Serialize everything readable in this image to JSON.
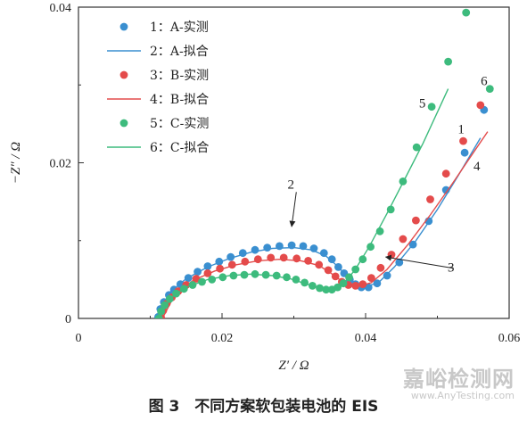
{
  "caption": "图 3　不同方案软包装电池的 EIS",
  "watermark": {
    "cn": "嘉峪检测网",
    "en": "www.AnyTesting.com"
  },
  "colors": {
    "A": "#3a8fd0",
    "B": "#e44b4b",
    "C": "#3dbb7d",
    "axis": "#333333"
  },
  "chart_data": {
    "type": "scatter",
    "title": "",
    "xlabel": "Z′ / Ω",
    "ylabel": "−Z″ / Ω",
    "xlim": [
      0,
      0.06
    ],
    "ylim": [
      0,
      0.04
    ],
    "x_ticks": [
      {
        "value": 0,
        "label": "0"
      },
      {
        "value": 0.02,
        "label": "0.02"
      },
      {
        "value": 0.04,
        "label": "0.04"
      },
      {
        "value": 0.06,
        "label": "0.06"
      }
    ],
    "y_ticks": [
      {
        "value": 0,
        "label": "0"
      },
      {
        "value": 0.02,
        "label": "0.02"
      },
      {
        "value": 0.04,
        "label": "0.04"
      }
    ],
    "grid": false,
    "legend_position": "top-left",
    "series": [
      {
        "key": "A",
        "name": "1：A-实测",
        "kind": "points",
        "points": [
          [
            0.0111,
            0.0002
          ],
          [
            0.0114,
            0.0012
          ],
          [
            0.0119,
            0.0021
          ],
          [
            0.0126,
            0.003
          ],
          [
            0.0133,
            0.0037
          ],
          [
            0.0142,
            0.0044
          ],
          [
            0.0153,
            0.0052
          ],
          [
            0.0166,
            0.006
          ],
          [
            0.018,
            0.0067
          ],
          [
            0.0196,
            0.0073
          ],
          [
            0.0212,
            0.0079
          ],
          [
            0.0229,
            0.0084
          ],
          [
            0.0246,
            0.0088
          ],
          [
            0.0263,
            0.0091
          ],
          [
            0.028,
            0.0093
          ],
          [
            0.0297,
            0.0094
          ],
          [
            0.0313,
            0.0093
          ],
          [
            0.0328,
            0.009
          ],
          [
            0.0342,
            0.0084
          ],
          [
            0.0353,
            0.0076
          ],
          [
            0.0362,
            0.0066
          ],
          [
            0.037,
            0.0058
          ],
          [
            0.0378,
            0.005
          ],
          [
            0.0386,
            0.0044
          ],
          [
            0.0394,
            0.004
          ],
          [
            0.0404,
            0.004
          ],
          [
            0.0416,
            0.0045
          ],
          [
            0.043,
            0.0055
          ],
          [
            0.0447,
            0.0072
          ],
          [
            0.0466,
            0.0095
          ],
          [
            0.0488,
            0.0125
          ],
          [
            0.0512,
            0.0165
          ],
          [
            0.0538,
            0.0213
          ],
          [
            0.0565,
            0.0268
          ]
        ]
      },
      {
        "key": "A",
        "name": "2：A-拟合",
        "kind": "line",
        "points": [
          [
            0.0112,
            0.0002
          ],
          [
            0.0128,
            0.0034
          ],
          [
            0.015,
            0.0051
          ],
          [
            0.018,
            0.0066
          ],
          [
            0.021,
            0.0077
          ],
          [
            0.024,
            0.0085
          ],
          [
            0.027,
            0.009
          ],
          [
            0.03,
            0.0091
          ],
          [
            0.0325,
            0.0088
          ],
          [
            0.0345,
            0.008
          ],
          [
            0.036,
            0.0068
          ],
          [
            0.0372,
            0.0056
          ],
          [
            0.0385,
            0.0046
          ],
          [
            0.04,
            0.0041
          ],
          [
            0.0418,
            0.0046
          ],
          [
            0.044,
            0.0066
          ],
          [
            0.047,
            0.01
          ],
          [
            0.05,
            0.014
          ],
          [
            0.053,
            0.0185
          ],
          [
            0.056,
            0.0232
          ]
        ]
      },
      {
        "key": "B",
        "name": "3：B-实测",
        "kind": "points",
        "points": [
          [
            0.0115,
            0.0001
          ],
          [
            0.0118,
            0.001
          ],
          [
            0.0123,
            0.0019
          ],
          [
            0.013,
            0.0027
          ],
          [
            0.0139,
            0.0035
          ],
          [
            0.015,
            0.0043
          ],
          [
            0.0164,
            0.0051
          ],
          [
            0.018,
            0.0058
          ],
          [
            0.0197,
            0.0064
          ],
          [
            0.0214,
            0.0069
          ],
          [
            0.0232,
            0.0073
          ],
          [
            0.025,
            0.0076
          ],
          [
            0.0268,
            0.0078
          ],
          [
            0.0286,
            0.0078
          ],
          [
            0.0304,
            0.0077
          ],
          [
            0.032,
            0.0074
          ],
          [
            0.0335,
            0.0069
          ],
          [
            0.0348,
            0.0062
          ],
          [
            0.0358,
            0.0054
          ],
          [
            0.0367,
            0.0047
          ],
          [
            0.0376,
            0.0043
          ],
          [
            0.0386,
            0.0042
          ],
          [
            0.0396,
            0.0044
          ],
          [
            0.0408,
            0.0052
          ],
          [
            0.0421,
            0.0065
          ],
          [
            0.0436,
            0.0082
          ],
          [
            0.0452,
            0.0102
          ],
          [
            0.047,
            0.0126
          ],
          [
            0.049,
            0.0153
          ],
          [
            0.0512,
            0.0186
          ],
          [
            0.0536,
            0.0228
          ],
          [
            0.056,
            0.0274
          ]
        ]
      },
      {
        "key": "B",
        "name": "4：B-拟合",
        "kind": "line",
        "points": [
          [
            0.0118,
            0.0002
          ],
          [
            0.0135,
            0.0032
          ],
          [
            0.016,
            0.0049
          ],
          [
            0.019,
            0.0061
          ],
          [
            0.022,
            0.0069
          ],
          [
            0.025,
            0.0074
          ],
          [
            0.028,
            0.0076
          ],
          [
            0.031,
            0.0074
          ],
          [
            0.0335,
            0.0068
          ],
          [
            0.0352,
            0.0058
          ],
          [
            0.0365,
            0.0049
          ],
          [
            0.0378,
            0.0044
          ],
          [
            0.0392,
            0.0042
          ],
          [
            0.0408,
            0.0046
          ],
          [
            0.043,
            0.0063
          ],
          [
            0.046,
            0.0096
          ],
          [
            0.049,
            0.0133
          ],
          [
            0.052,
            0.0172
          ],
          [
            0.055,
            0.0213
          ],
          [
            0.057,
            0.024
          ]
        ]
      },
      {
        "key": "C",
        "name": "5：C-实测",
        "kind": "points",
        "points": [
          [
            0.0112,
            0.0
          ],
          [
            0.0115,
            0.0009
          ],
          [
            0.012,
            0.0017
          ],
          [
            0.0127,
            0.0025
          ],
          [
            0.0136,
            0.0032
          ],
          [
            0.0147,
            0.0038
          ],
          [
            0.0159,
            0.0043
          ],
          [
            0.0172,
            0.0047
          ],
          [
            0.0186,
            0.005
          ],
          [
            0.0201,
            0.0053
          ],
          [
            0.0216,
            0.0055
          ],
          [
            0.0231,
            0.0056
          ],
          [
            0.0246,
            0.0057
          ],
          [
            0.0261,
            0.0056
          ],
          [
            0.0276,
            0.0055
          ],
          [
            0.029,
            0.0053
          ],
          [
            0.0303,
            0.005
          ],
          [
            0.0315,
            0.0046
          ],
          [
            0.0326,
            0.0042
          ],
          [
            0.0336,
            0.0039
          ],
          [
            0.0345,
            0.0037
          ],
          [
            0.0353,
            0.0037
          ],
          [
            0.0361,
            0.004
          ],
          [
            0.0369,
            0.0045
          ],
          [
            0.0377,
            0.0053
          ],
          [
            0.0386,
            0.0063
          ],
          [
            0.0396,
            0.0076
          ],
          [
            0.0407,
            0.0092
          ],
          [
            0.042,
            0.0112
          ],
          [
            0.0435,
            0.014
          ],
          [
            0.0452,
            0.0176
          ],
          [
            0.0471,
            0.022
          ],
          [
            0.0492,
            0.0272
          ],
          [
            0.0515,
            0.033
          ],
          [
            0.054,
            0.0393
          ],
          [
            0.0562,
            0.044
          ],
          [
            0.0573,
            0.0295
          ]
        ]
      },
      {
        "key": "C",
        "name": "6：C-拟合",
        "kind": "line",
        "points": [
          [
            0.0113,
            0.0001
          ],
          [
            0.0128,
            0.0026
          ],
          [
            0.015,
            0.004
          ],
          [
            0.018,
            0.005
          ],
          [
            0.021,
            0.0055
          ],
          [
            0.024,
            0.0057
          ],
          [
            0.027,
            0.0055
          ],
          [
            0.0295,
            0.0051
          ],
          [
            0.0318,
            0.0044
          ],
          [
            0.0338,
            0.0039
          ],
          [
            0.0355,
            0.0038
          ],
          [
            0.037,
            0.0046
          ],
          [
            0.0385,
            0.0062
          ],
          [
            0.0405,
            0.0092
          ],
          [
            0.043,
            0.0135
          ],
          [
            0.0455,
            0.018
          ],
          [
            0.048,
            0.0225
          ],
          [
            0.05,
            0.0265
          ],
          [
            0.0515,
            0.0295
          ]
        ]
      }
    ],
    "annotations": [
      {
        "label": "1",
        "x": 0.0533,
        "y": 0.0238,
        "arrow_to": null
      },
      {
        "label": "2",
        "x": 0.0296,
        "y": 0.0167,
        "arrow_to": [
          0.0297,
          0.0118
        ]
      },
      {
        "label": "3",
        "x": 0.0519,
        "y": 0.006,
        "arrow_to": [
          0.0428,
          0.0079
        ]
      },
      {
        "label": "4",
        "x": 0.0555,
        "y": 0.019,
        "arrow_to": null
      },
      {
        "label": "5",
        "x": 0.0479,
        "y": 0.0271,
        "arrow_to": null
      },
      {
        "label": "6",
        "x": 0.0565,
        "y": 0.03,
        "arrow_to": null
      }
    ]
  }
}
